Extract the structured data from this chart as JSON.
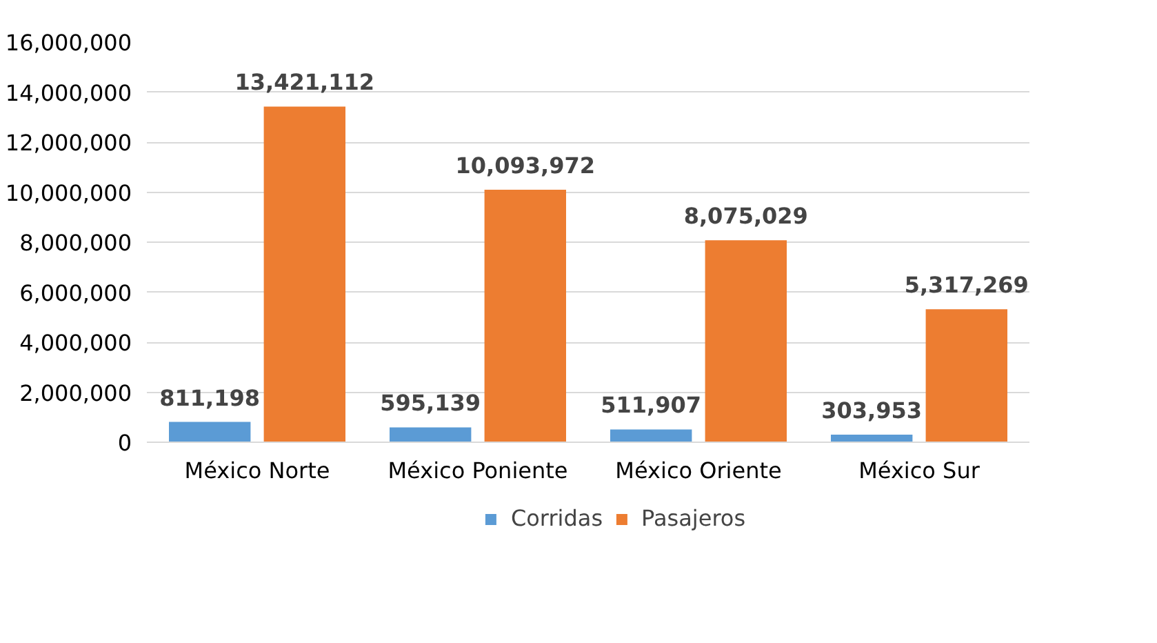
{
  "chart_data": {
    "type": "bar",
    "categories": [
      "México Norte",
      "México Poniente",
      "México Oriente",
      "México Sur"
    ],
    "series": [
      {
        "name": "Corridas",
        "color": "#5b9bd5",
        "values": [
          811198,
          595139,
          511907,
          303953
        ],
        "value_labels": [
          "811,198",
          "595,139",
          "511,907",
          "303,953"
        ]
      },
      {
        "name": "Pasajeros",
        "color": "#ed7d31",
        "values": [
          13421112,
          10093972,
          8075029,
          5317269
        ],
        "value_labels": [
          "13,421,112",
          "10,093,972",
          "8,075,029",
          "5,317,269"
        ]
      }
    ],
    "ylim": [
      0,
      16000000
    ],
    "yticks": [
      0,
      {
        "value": 2000000,
        "label": "2,000,000"
      },
      {
        "value": 4000000,
        "label": "4,000,000"
      },
      {
        "value": 6000000,
        "label": "6,000,000"
      },
      {
        "value": 8000000,
        "label": "8,000,000"
      },
      {
        "value": 10000000,
        "label": "10,000,000"
      },
      {
        "value": 12000000,
        "label": "12,000,000"
      },
      {
        "value": 14000000,
        "label": "14,000,000"
      },
      {
        "value": 16000000,
        "label": "16,000,000"
      }
    ],
    "grid": "y",
    "legend": "bottom"
  }
}
